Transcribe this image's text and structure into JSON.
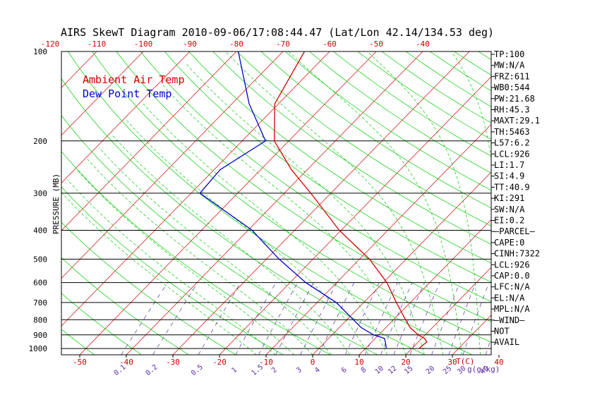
{
  "colors": {
    "background": "#ffffff",
    "frame": "#000000",
    "isotherm": "#d40000",
    "dry_adiabat": "#00cc00",
    "moist_adiabat": "#00cc00",
    "mixing_ratio": "#5a2ea6",
    "temperature": "#d40000",
    "dewpoint": "#0000cc",
    "axis_text": "#cc0000",
    "mixing_ratio_text": "#5a2ea6"
  },
  "chart_data": {
    "type": "line",
    "title": "AIRS SkewT Diagram 2010-09-06/17:08:44.47 (Lat/Lon 42.14/134.53 deg)",
    "ylabel": "PRESSURE (MB)",
    "xlabel": "T(C)",
    "y_scale": "log",
    "ylim": [
      1050,
      100
    ],
    "pressure_levels": [
      1000,
      900,
      800,
      700,
      600,
      500,
      400,
      300,
      200,
      100
    ],
    "pressure_tick_labels": [
      "1000",
      "900",
      "800",
      "700",
      "600",
      "500",
      "400",
      "300",
      "200",
      "100"
    ],
    "bottom_temperature_ticks": [
      -50,
      -40,
      -30,
      -20,
      -10,
      0,
      10,
      20,
      30,
      40
    ],
    "bottom_temperature_tick_labels": [
      "-50",
      "-40",
      "-30",
      "-20",
      "-10",
      "0",
      "10",
      "20",
      "30",
      "40"
    ],
    "top_temperature_ticks": [
      -120,
      -110,
      -100,
      -90,
      -80,
      -70,
      -60,
      -50,
      -40
    ],
    "top_temperature_tick_labels": [
      "-120",
      "-110",
      "-100",
      "-90",
      "-80",
      "-70",
      "-60",
      "-50",
      "-40"
    ],
    "temperature_axis_unit_label": "T(C)",
    "mixing_ratio_labels": [
      "0.1",
      "0.2",
      "0.5",
      "1",
      "1.5",
      "2",
      "3",
      "4",
      "6",
      "8",
      "10",
      "12",
      "15",
      "20",
      "25",
      "30",
      "40"
    ],
    "mixing_ratio_values": [
      0.1,
      0.2,
      0.5,
      1,
      1.5,
      2,
      3,
      4,
      6,
      8,
      10,
      12,
      15,
      20,
      25,
      30,
      40
    ],
    "mixing_ratio_unit_label": "g(g/kg)",
    "series": [
      {
        "name": "Ambient Air Temp",
        "points": [
          [
            1000,
            21.5
          ],
          [
            950,
            21.8
          ],
          [
            925,
            20.6
          ],
          [
            900,
            18.5
          ],
          [
            850,
            15.2
          ],
          [
            800,
            12.6
          ],
          [
            700,
            7.0
          ],
          [
            600,
            0.8
          ],
          [
            500,
            -7.9
          ],
          [
            400,
            -20.4
          ],
          [
            300,
            -34.3
          ],
          [
            250,
            -43.4
          ],
          [
            200,
            -53.1
          ],
          [
            150,
            -60.8
          ],
          [
            100,
            -65.4
          ]
        ]
      },
      {
        "name": "Dew Point Temp",
        "points": [
          [
            1000,
            14.5
          ],
          [
            950,
            12.9
          ],
          [
            925,
            12.0
          ],
          [
            900,
            8.9
          ],
          [
            850,
            4.7
          ],
          [
            800,
            1.4
          ],
          [
            700,
            -5.9
          ],
          [
            600,
            -16.6
          ],
          [
            500,
            -27.3
          ],
          [
            400,
            -39.1
          ],
          [
            300,
            -58.1
          ],
          [
            250,
            -58.7
          ],
          [
            200,
            -55.0
          ],
          [
            150,
            -66.3
          ],
          [
            100,
            -79.6
          ]
        ]
      }
    ],
    "legend_placement": "top-left",
    "grid": true,
    "index_labels": [
      "TP:100",
      "MW:N/A",
      "FRZ:611",
      "WB0:544",
      "PW:21.68",
      "RH:45.3",
      "MAXT:29.1",
      "TH:5463",
      "L57:6.2",
      "LCL:926",
      "LI:1.7",
      "SI:4.9",
      "TT:40.9",
      "KI:291",
      "SW:N/A",
      "EI:0.2",
      "—PARCEL—",
      "CAPE:0",
      "CINH:7322",
      "LCL:926",
      "CAP:0.0",
      "LFC:N/A",
      "EL:N/A",
      "MPL:N/A",
      "—WIND—",
      "NOT",
      "AVAIL"
    ]
  }
}
